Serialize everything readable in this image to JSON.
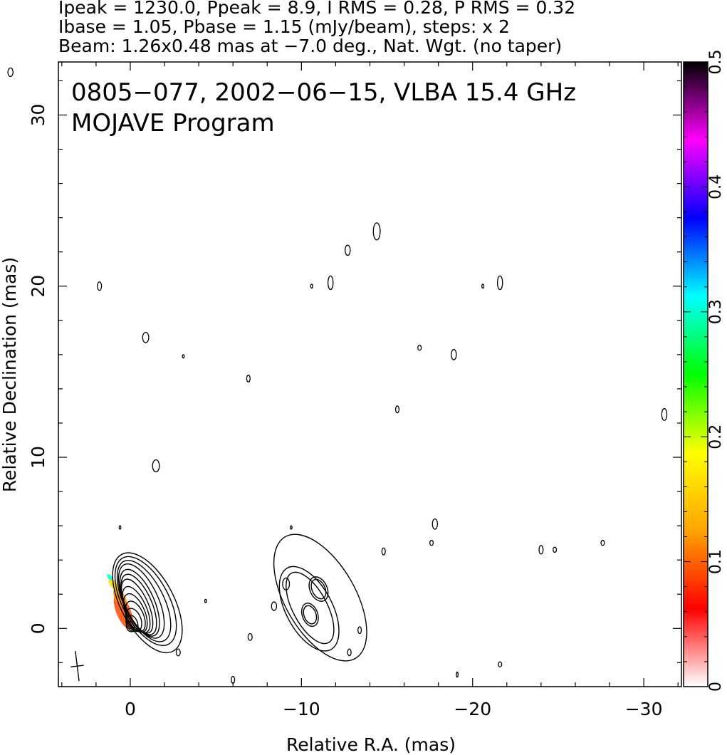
{
  "header": {
    "line1": "Ipeak = 1230.0, Ppeak = 8.9, I RMS = 0.28, P RMS = 0.32",
    "line2": "Ibase = 1.05, Pbase = 1.15 (mJy/beam), steps: x 2",
    "line3": "Beam: 1.26x0.48 mas at −7.0 deg., Nat. Wgt. (no taper)"
  },
  "plot": {
    "title": "0805−077, 2002−06−15, VLBA 15.4 GHz",
    "subtitle": "MOJAVE Program"
  },
  "colors": {
    "contour": "#000000",
    "frame": "#000000",
    "background": "#ffffff"
  },
  "chart_data": {
    "type": "contour",
    "xlabel": "Relative R.A. (mas)",
    "ylabel": "Relative Declination (mas)",
    "xlim": [
      4.2,
      -32.2
    ],
    "ylim": [
      -3.4,
      33.1
    ],
    "x_ticks": [
      0,
      -10,
      -20,
      -30
    ],
    "x_tick_labels": [
      "0",
      "−10",
      "−20",
      "−30"
    ],
    "y_ticks": [
      0,
      10,
      20,
      30
    ],
    "y_tick_labels": [
      "0",
      "10",
      "20",
      "30"
    ],
    "x_minor_step": 2,
    "y_minor_step": 2,
    "core": {
      "ra": 0.0,
      "dec": 0.0,
      "peak_mJy_per_beam": 1230.0,
      "base_contour_mJy_per_beam": 1.05,
      "contour_step_factor": 2,
      "contours": [
        {
          "dx": 0.0,
          "dy": 0.1,
          "a": 0.3,
          "b": 0.22,
          "pa": -20
        },
        {
          "dx": -0.1,
          "dy": 0.3,
          "a": 0.5,
          "b": 0.32,
          "pa": -22
        },
        {
          "dx": -0.2,
          "dy": 0.5,
          "a": 0.7,
          "b": 0.42,
          "pa": -22
        },
        {
          "dx": -0.3,
          "dy": 0.7,
          "a": 0.95,
          "b": 0.48,
          "pa": -23
        },
        {
          "dx": -0.3,
          "dy": 0.9,
          "a": 1.2,
          "b": 0.55,
          "pa": -23
        },
        {
          "dx": -0.35,
          "dy": 1.1,
          "a": 1.45,
          "b": 0.6,
          "pa": -24
        },
        {
          "dx": -0.4,
          "dy": 1.3,
          "a": 1.7,
          "b": 0.66,
          "pa": -24
        },
        {
          "dx": -0.5,
          "dy": 1.4,
          "a": 1.9,
          "b": 0.75,
          "pa": -24
        },
        {
          "dx": -0.55,
          "dy": 1.5,
          "a": 2.1,
          "b": 0.85,
          "pa": -24
        },
        {
          "dx": -0.65,
          "dy": 1.6,
          "a": 2.35,
          "b": 0.98,
          "pa": -25
        },
        {
          "dx": -0.8,
          "dy": 1.6,
          "a": 2.6,
          "b": 1.15,
          "pa": -27
        },
        {
          "dx": -0.9,
          "dy": 1.6,
          "a": 2.85,
          "b": 1.35,
          "pa": -28
        },
        {
          "dx": -1.0,
          "dy": 1.5,
          "a": 3.2,
          "b": 1.55,
          "pa": -28
        }
      ]
    },
    "jet_component": {
      "ra": -10.5,
      "dec": 1.0,
      "contours": [
        {
          "dx": 0.0,
          "dy": 0.2,
          "a": 2.3,
          "b": 1.0,
          "pa": -28
        },
        {
          "dx": 0.05,
          "dy": 0.15,
          "a": 2.7,
          "b": 1.35,
          "pa": -28
        },
        {
          "dx": -0.6,
          "dy": 0.8,
          "a": 4.1,
          "b": 2.05,
          "pa": -30
        },
        {
          "dx": 0.0,
          "dy": -0.2,
          "a": 0.7,
          "b": 0.45,
          "pa": -20
        },
        {
          "dx": 0.0,
          "dy": -0.2,
          "a": 0.55,
          "b": 0.35,
          "pa": -20
        },
        {
          "dx": -0.5,
          "dy": 1.3,
          "a": 0.75,
          "b": 0.5,
          "pa": -25
        },
        {
          "dx": -0.5,
          "dy": 1.3,
          "a": 0.6,
          "b": 0.38,
          "pa": -25
        }
      ]
    },
    "polarization_color_scale": {
      "min": 0,
      "max": 0.5,
      "ticks": [
        0,
        0.1,
        0.2,
        0.3,
        0.4,
        0.5
      ],
      "tick_labels": [
        "0",
        "0.1",
        "0.2",
        "0.3",
        "0.4",
        "0.5"
      ],
      "stops": [
        "#ffffff",
        "#ff0000",
        "#ffa500",
        "#ffff00",
        "#00ff00",
        "#00ffff",
        "#0000ff",
        "#ff00ff",
        "#000000"
      ]
    },
    "polarization_patches": [
      {
        "ra": 0.4,
        "dec": 1.0,
        "a": 1.1,
        "b": 0.42,
        "pa": -22,
        "value": 0.09
      },
      {
        "ra": 0.6,
        "dec": 1.8,
        "a": 0.6,
        "b": 0.3,
        "pa": -30,
        "value": 0.12
      },
      {
        "ra": 1.0,
        "dec": 2.6,
        "a": 0.35,
        "b": 0.2,
        "pa": -40,
        "value": 0.16
      },
      {
        "ra": 1.2,
        "dec": 3.0,
        "a": 0.2,
        "b": 0.12,
        "pa": -40,
        "value": 0.3
      }
    ],
    "noise_contours": [
      {
        "ra": 7.0,
        "dec": 32.5,
        "a": 0.25,
        "b": 0.15
      },
      {
        "ra": 1.8,
        "dec": 20.0,
        "a": 0.25,
        "b": 0.12
      },
      {
        "ra": -0.9,
        "dec": 17.0,
        "a": 0.3,
        "b": 0.18
      },
      {
        "ra": -3.1,
        "dec": 15.9,
        "a": 0.1,
        "b": 0.05
      },
      {
        "ra": -6.9,
        "dec": 14.6,
        "a": 0.2,
        "b": 0.1
      },
      {
        "ra": -1.5,
        "dec": 9.5,
        "a": 0.35,
        "b": 0.2
      },
      {
        "ra": 0.6,
        "dec": 5.9,
        "a": 0.1,
        "b": 0.05
      },
      {
        "ra": -4.4,
        "dec": 1.6,
        "a": 0.1,
        "b": 0.05
      },
      {
        "ra": -2.8,
        "dec": -1.4,
        "a": 0.2,
        "b": 0.12
      },
      {
        "ra": -7.0,
        "dec": -0.5,
        "a": 0.2,
        "b": 0.12
      },
      {
        "ra": -8.4,
        "dec": 1.3,
        "a": 0.25,
        "b": 0.15
      },
      {
        "ra": -9.1,
        "dec": 2.6,
        "a": 0.35,
        "b": 0.2
      },
      {
        "ra": -9.4,
        "dec": 5.9,
        "a": 0.1,
        "b": 0.05
      },
      {
        "ra": -10.6,
        "dec": 20.0,
        "a": 0.12,
        "b": 0.06
      },
      {
        "ra": -11.7,
        "dec": 20.2,
        "a": 0.4,
        "b": 0.15
      },
      {
        "ra": -12.7,
        "dec": 22.1,
        "a": 0.3,
        "b": 0.15
      },
      {
        "ra": -14.4,
        "dec": 23.2,
        "a": 0.5,
        "b": 0.2
      },
      {
        "ra": -13.4,
        "dec": -0.1,
        "a": 0.2,
        "b": 0.1
      },
      {
        "ra": -12.8,
        "dec": -1.4,
        "a": 0.2,
        "b": 0.1
      },
      {
        "ra": -14.8,
        "dec": 4.5,
        "a": 0.2,
        "b": 0.1
      },
      {
        "ra": -15.6,
        "dec": 12.8,
        "a": 0.2,
        "b": 0.1
      },
      {
        "ra": -16.9,
        "dec": 16.4,
        "a": 0.15,
        "b": 0.1
      },
      {
        "ra": -17.6,
        "dec": 5.0,
        "a": 0.15,
        "b": 0.1
      },
      {
        "ra": -17.8,
        "dec": 6.1,
        "a": 0.3,
        "b": 0.15
      },
      {
        "ra": -18.9,
        "dec": 16.0,
        "a": 0.3,
        "b": 0.15
      },
      {
        "ra": -20.6,
        "dec": 20.0,
        "a": 0.12,
        "b": 0.06
      },
      {
        "ra": -21.6,
        "dec": 20.2,
        "a": 0.4,
        "b": 0.15
      },
      {
        "ra": -21.6,
        "dec": -2.1,
        "a": 0.15,
        "b": 0.1
      },
      {
        "ra": -24.0,
        "dec": 4.6,
        "a": 0.25,
        "b": 0.12
      },
      {
        "ra": -24.8,
        "dec": 4.6,
        "a": 0.15,
        "b": 0.1
      },
      {
        "ra": -27.6,
        "dec": 5.0,
        "a": 0.15,
        "b": 0.1
      },
      {
        "ra": -31.2,
        "dec": 12.5,
        "a": 0.35,
        "b": 0.15
      },
      {
        "ra": -6.0,
        "dec": -3.0,
        "a": 0.2,
        "b": 0.1
      },
      {
        "ra": -19.1,
        "dec": -2.7,
        "a": 0.15,
        "b": 0.05
      }
    ],
    "beam": {
      "ra": 3.1,
      "dec": -2.2,
      "major_mas": 1.26,
      "minor_mas": 0.48,
      "pa_deg": -7.0
    }
  }
}
